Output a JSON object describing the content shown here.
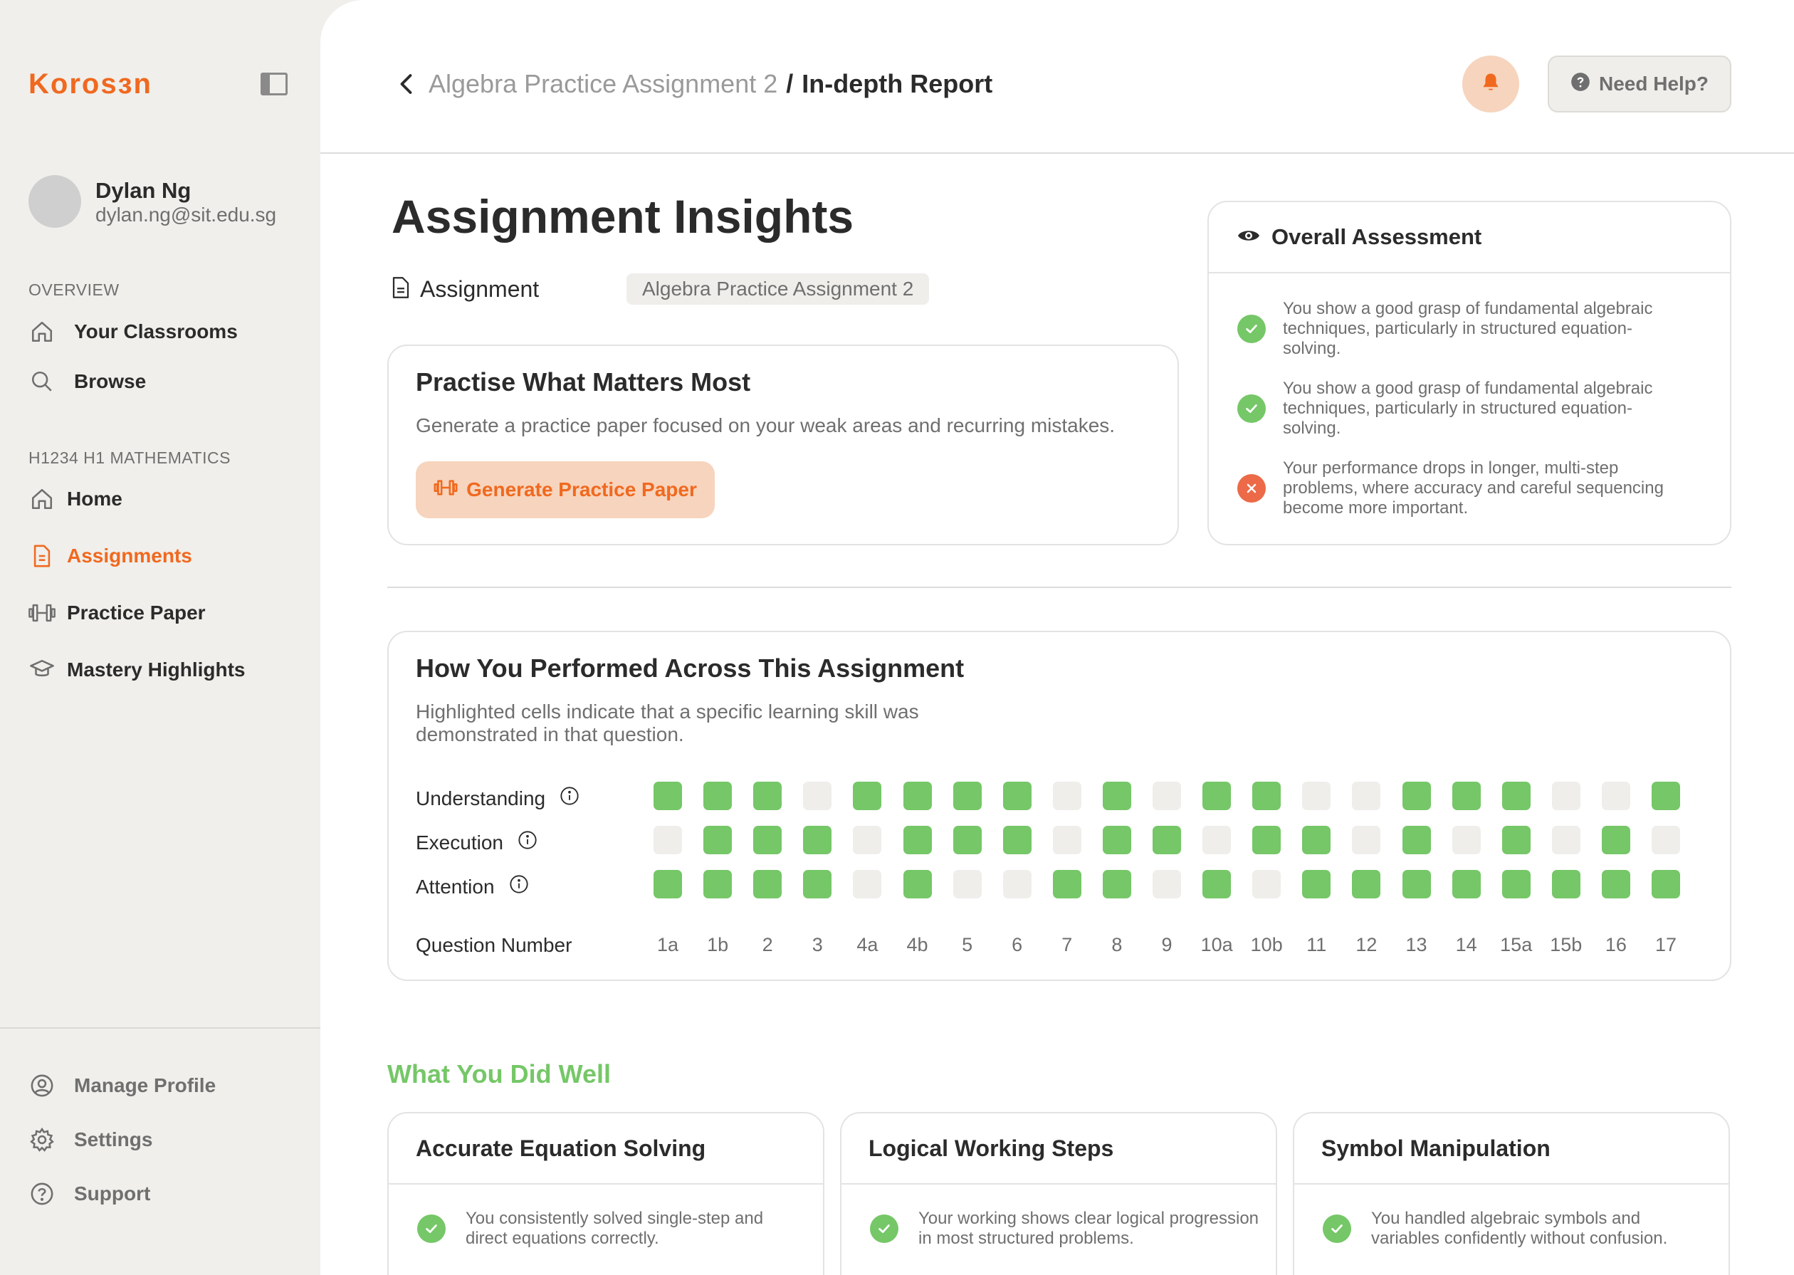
{
  "sidebar": {
    "logo": "Korosɜn",
    "user": {
      "name": "Dylan Ng",
      "email": "dylan.ng@sit.edu.sg"
    },
    "overview_label": "OVERVIEW",
    "overview_items": [
      {
        "label": "Your Classrooms",
        "icon": "home-icon"
      },
      {
        "label": "Browse",
        "icon": "search-icon"
      }
    ],
    "class_label": "H1234 H1 MATHEMATICS",
    "class_items": [
      {
        "label": "Home",
        "icon": "home-icon"
      },
      {
        "label": "Assignments",
        "icon": "document-icon",
        "active": true
      },
      {
        "label": "Practice Paper",
        "icon": "dumbbell-icon"
      },
      {
        "label": "Mastery Highlights",
        "icon": "graduation-cap-icon"
      }
    ],
    "bottom_items": [
      {
        "label": "Manage Profile",
        "icon": "user-circle-icon"
      },
      {
        "label": "Settings",
        "icon": "gear-icon"
      },
      {
        "label": "Support",
        "icon": "question-icon"
      }
    ]
  },
  "header": {
    "breadcrumb_parent": "Algebra Practice Assignment 2",
    "breadcrumb_sep": "/",
    "breadcrumb_current": "In-depth Report",
    "help_label": "Need Help?"
  },
  "page": {
    "title": "Assignment Insights",
    "assignment_label": "Assignment",
    "assignment_value": "Algebra Practice Assignment 2"
  },
  "practise": {
    "title": "Practise What Matters Most",
    "description": "Generate a practice paper focused on your weak areas and recurring mistakes.",
    "button_label": "Generate Practice Paper"
  },
  "overall": {
    "title": "Overall Assessment",
    "items": [
      {
        "status": "ok",
        "text": "You show a good grasp of fundamental algebraic techniques, particularly in structured equation-solving."
      },
      {
        "status": "ok",
        "text": "You show a good grasp of fundamental algebraic techniques, particularly in structured equation-solving."
      },
      {
        "status": "bad",
        "text": "Your performance drops in longer, multi-step problems, where accuracy and careful sequencing become more important."
      }
    ]
  },
  "performance": {
    "title": "How You Performed Across This Assignment",
    "description": "Highlighted cells indicate that a specific learning skill was demonstrated in that question.",
    "question_label": "Question Number",
    "questions": [
      "1a",
      "1b",
      "2",
      "3",
      "4a",
      "4b",
      "5",
      "6",
      "7",
      "8",
      "9",
      "10a",
      "10b",
      "11",
      "12",
      "13",
      "14",
      "15a",
      "15b",
      "16",
      "17"
    ],
    "skills": [
      {
        "name": "Understanding",
        "cells": [
          1,
          1,
          1,
          0,
          1,
          1,
          1,
          1,
          0,
          1,
          0,
          1,
          1,
          0,
          0,
          1,
          1,
          1,
          0,
          0,
          1
        ]
      },
      {
        "name": "Execution",
        "cells": [
          0,
          1,
          1,
          1,
          0,
          1,
          1,
          1,
          0,
          1,
          1,
          0,
          1,
          1,
          0,
          1,
          0,
          1,
          0,
          1,
          0
        ]
      },
      {
        "name": "Attention",
        "cells": [
          1,
          1,
          1,
          1,
          0,
          1,
          0,
          0,
          1,
          1,
          0,
          1,
          0,
          1,
          1,
          1,
          1,
          1,
          1,
          1,
          1
        ]
      }
    ]
  },
  "did_well": {
    "title": "What You Did Well",
    "cards": [
      {
        "title": "Accurate Equation Solving",
        "text": "You consistently solved single-step and direct equations correctly."
      },
      {
        "title": "Logical Working Steps",
        "text": "Your working shows clear logical progression in most structured problems."
      },
      {
        "title": "Symbol Manipulation",
        "text": "You handled algebraic symbols and variables confidently without confusion."
      }
    ]
  },
  "colors": {
    "accent": "#f0691f",
    "accent_soft": "#f7d4bd",
    "success": "#75c767",
    "error": "#ec6a48",
    "cell_off": "#efeeea"
  }
}
